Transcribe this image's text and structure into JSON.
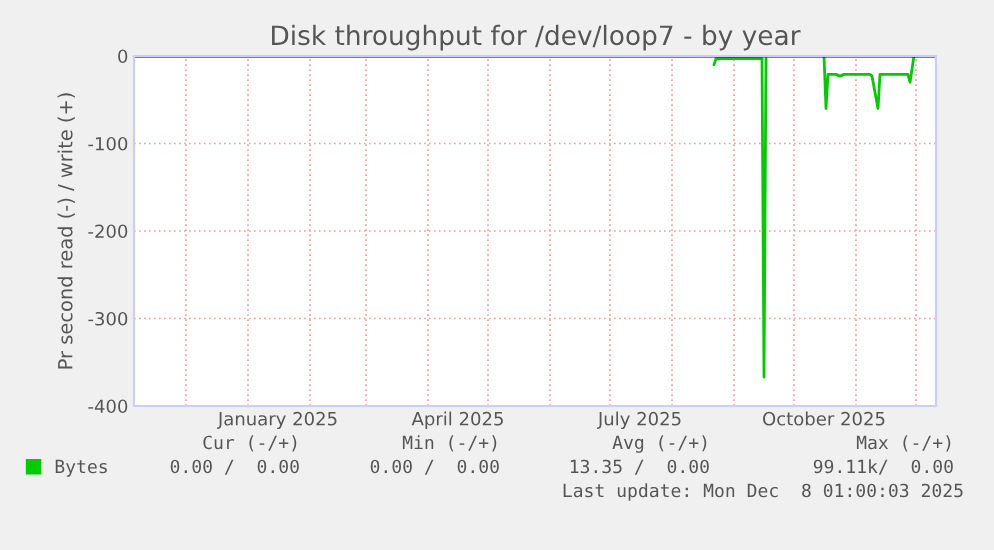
{
  "chart_data": {
    "type": "line",
    "title": "Disk throughput for /dev/loop7 - by year",
    "ylabel": "Pr second read (-) / write (+)",
    "x": [
      "2025-08-22",
      "2025-08-23",
      "2025-09-15",
      "2025-09-16",
      "2025-09-17",
      "2025-09-18",
      "2025-10-16",
      "2025-10-17",
      "2025-10-18",
      "2025-10-22",
      "2025-10-24",
      "2025-10-26",
      "2025-11-08",
      "2025-11-09",
      "2025-11-12",
      "2025-11-13",
      "2025-11-27",
      "2025-11-28",
      "2025-11-30"
    ],
    "series": [
      {
        "name": "Bytes",
        "color": "#00cc00",
        "values": [
          -10,
          -3,
          -3,
          -367,
          -3,
          null,
          0,
          -60,
          -21,
          -21,
          -23,
          -21,
          -21,
          -23,
          -60,
          -21,
          -21,
          -30,
          0
        ]
      }
    ],
    "xlim": [
      "2024-11-05",
      "2025-12-11"
    ],
    "ylim": [
      -400,
      0
    ],
    "xticks": [
      {
        "value": "2024-12-01",
        "label": null
      },
      {
        "value": "2025-01-01",
        "label": null
      },
      {
        "value": "2025-01-16",
        "label": "January 2025"
      },
      {
        "value": "2025-02-01",
        "label": null
      },
      {
        "value": "2025-03-01",
        "label": null
      },
      {
        "value": "2025-04-01",
        "label": null
      },
      {
        "value": "2025-04-16",
        "label": "April 2025"
      },
      {
        "value": "2025-05-01",
        "label": null
      },
      {
        "value": "2025-06-01",
        "label": null
      },
      {
        "value": "2025-07-01",
        "label": null
      },
      {
        "value": "2025-07-16",
        "label": "July 2025"
      },
      {
        "value": "2025-08-01",
        "label": null
      },
      {
        "value": "2025-09-01",
        "label": null
      },
      {
        "value": "2025-10-01",
        "label": null
      },
      {
        "value": "2025-10-16",
        "label": "October 2025"
      },
      {
        "value": "2025-11-01",
        "label": null
      },
      {
        "value": "2025-12-01",
        "label": null
      }
    ],
    "yticks": [
      -400,
      -300,
      -200,
      -100,
      0
    ],
    "grid": true,
    "legend": "bottom left",
    "ref_lines": [
      {
        "axis": "y",
        "value": 0,
        "color": "#000000"
      }
    ],
    "annotations": [
      "Cur (-/+)",
      "Min (-/+)",
      "Avg (-/+)",
      "Max (-/+)",
      "0.00 /  0.00",
      "0.00 /  0.00",
      "13.35 /  0.00",
      "99.11k/  0.00",
      "Last update: Mon Dec  8 01:00:03 2025"
    ]
  }
}
